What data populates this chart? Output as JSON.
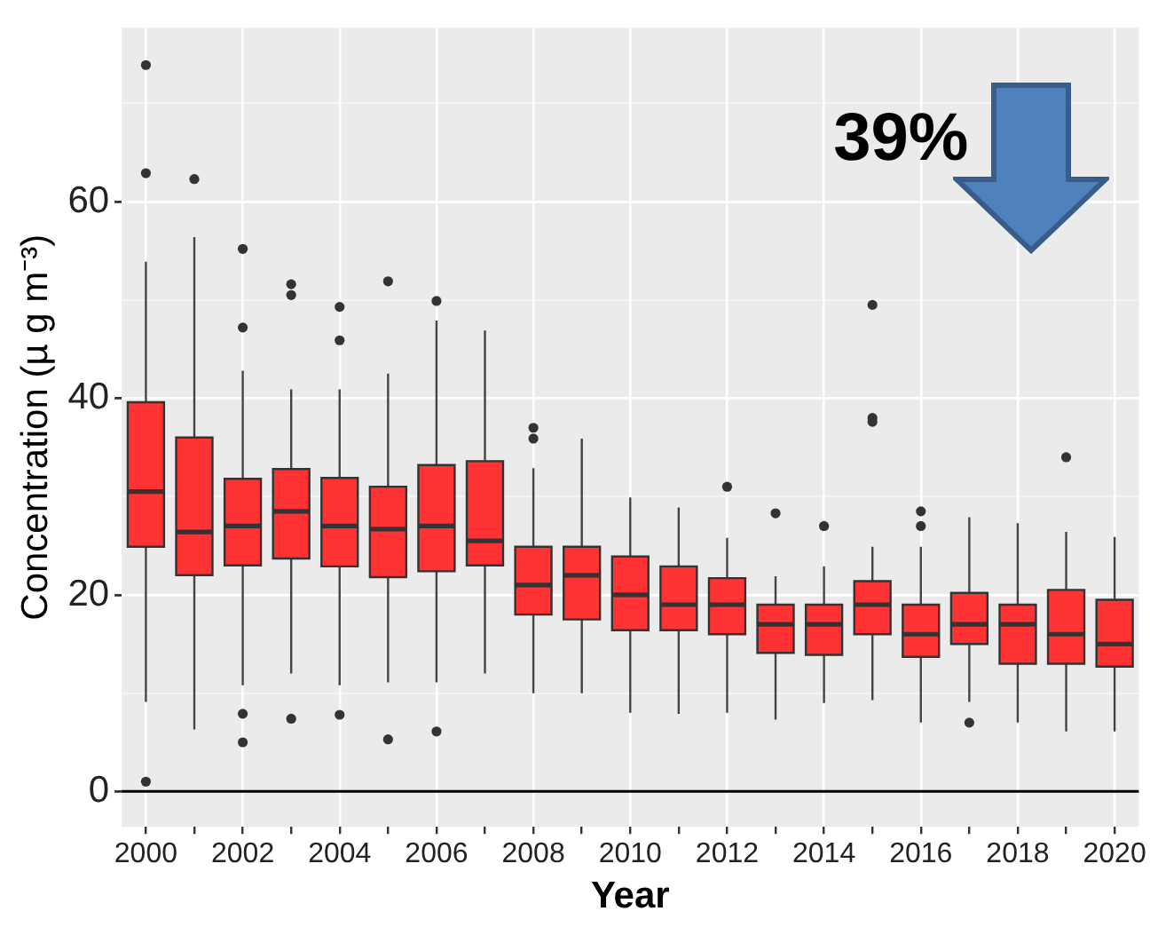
{
  "chart_data": {
    "type": "box",
    "xlabel": "Year",
    "ylabel": "Concentration (µ g m⁻³)",
    "categories": [
      "2000",
      null,
      "2002",
      null,
      "2004",
      null,
      "2006",
      null,
      "2008",
      null,
      "2010",
      null,
      "2012",
      null,
      "2014",
      null,
      "2016",
      null,
      "2018",
      null,
      "2020"
    ],
    "ylim": [
      -3.6,
      77.7
    ],
    "yticks": [
      0,
      {
        "value": 10,
        "label": null
      },
      20,
      {
        "value": 30,
        "label": null
      },
      40,
      {
        "value": 50,
        "label": null
      },
      60,
      {
        "value": 70,
        "label": null
      }
    ],
    "grid": true,
    "ref_lines": [
      {
        "axis": "y",
        "value": 0,
        "color": "#000000"
      }
    ],
    "annotations": [
      "39%"
    ],
    "series": [
      {
        "color": "#ff3333",
        "boxes": [
          {
            "low": 9.1,
            "q1": 24.9,
            "median": 30.5,
            "q3": 39.6,
            "high": 53.9,
            "outliers": [
              73.9,
              62.9,
              1.0
            ]
          },
          {
            "low": 6.3,
            "q1": 22.0,
            "median": 26.4,
            "q3": 36.0,
            "high": 56.4,
            "outliers": [
              62.3
            ]
          },
          {
            "low": 10.8,
            "q1": 23.0,
            "median": 27.0,
            "q3": 31.8,
            "high": 42.8,
            "outliers": [
              55.2,
              47.2,
              7.9,
              5.0
            ]
          },
          {
            "low": 12.0,
            "q1": 23.7,
            "median": 28.5,
            "q3": 32.8,
            "high": 40.9,
            "outliers": [
              51.6,
              50.5,
              7.4
            ]
          },
          {
            "low": 10.8,
            "q1": 22.9,
            "median": 27.0,
            "q3": 31.9,
            "high": 40.9,
            "outliers": [
              49.3,
              45.9,
              7.8
            ]
          },
          {
            "low": 11.1,
            "q1": 21.8,
            "median": 26.7,
            "q3": 31.0,
            "high": 42.5,
            "outliers": [
              51.9,
              5.3
            ]
          },
          {
            "low": 11.1,
            "q1": 22.4,
            "median": 27.0,
            "q3": 33.2,
            "high": 47.9,
            "outliers": [
              49.9,
              6.1
            ]
          },
          {
            "low": 12.0,
            "q1": 23.0,
            "median": 25.5,
            "q3": 33.6,
            "high": 46.9
          },
          {
            "low": 10.0,
            "q1": 18.0,
            "median": 21.0,
            "q3": 24.9,
            "high": 32.9,
            "outliers": [
              37.0,
              35.9
            ]
          },
          {
            "low": 10.0,
            "q1": 17.5,
            "median": 22.0,
            "q3": 24.9,
            "high": 35.9
          },
          {
            "low": 8.0,
            "q1": 16.4,
            "median": 20.0,
            "q3": 23.9,
            "high": 29.9
          },
          {
            "low": 7.9,
            "q1": 16.4,
            "median": 19.0,
            "q3": 22.9,
            "high": 28.9
          },
          {
            "low": 8.0,
            "q1": 16.0,
            "median": 19.0,
            "q3": 21.7,
            "high": 25.8,
            "outliers": [
              31.0
            ]
          },
          {
            "low": 7.3,
            "q1": 14.1,
            "median": 17.0,
            "q3": 19.0,
            "high": 21.9,
            "outliers": [
              28.3
            ]
          },
          {
            "low": 9.0,
            "q1": 13.9,
            "median": 17.0,
            "q3": 19.0,
            "high": 22.9,
            "outliers": [
              27.0
            ]
          },
          {
            "low": 9.3,
            "q1": 16.0,
            "median": 19.0,
            "q3": 21.4,
            "high": 24.9,
            "outliers": [
              49.5,
              38.0,
              37.6
            ]
          },
          {
            "low": 7.0,
            "q1": 13.7,
            "median": 16.0,
            "q3": 19.0,
            "high": 24.9,
            "outliers": [
              28.5,
              27.0
            ]
          },
          {
            "low": 9.1,
            "q1": 15.0,
            "median": 17.0,
            "q3": 20.2,
            "high": 27.9,
            "outliers": [
              7.0
            ]
          },
          {
            "low": 7.0,
            "q1": 13.0,
            "median": 17.0,
            "q3": 19.0,
            "high": 27.3
          },
          {
            "low": 6.1,
            "q1": 13.0,
            "median": 16.0,
            "q3": 20.5,
            "high": 26.4,
            "outliers": [
              34.0
            ]
          },
          {
            "low": 6.1,
            "q1": 12.7,
            "median": 15.0,
            "q3": 19.5,
            "high": 25.9
          }
        ]
      }
    ]
  }
}
